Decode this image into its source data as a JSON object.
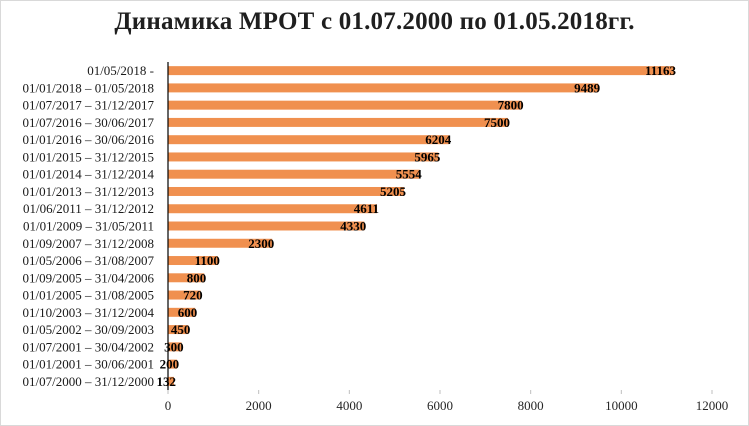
{
  "chart_data": {
    "type": "bar",
    "orientation": "horizontal",
    "title": "Динамика МРОТ с 01.07.2000 по 01.05.2018гг.",
    "categories": [
      "01/07/2000 – 31/12/2000",
      "01/01/2001 – 30/06/2001",
      "01/07/2001 – 30/04/2002",
      "01/05/2002 – 30/09/2003",
      "01/10/2003 – 31/12/2004",
      "01/01/2005 – 31/08/2005",
      "01/09/2005 – 31/04/2006",
      "01/05/2006 – 31/08/2007",
      "01/09/2007 – 31/12/2008",
      "01/01/2009 – 31/05/2011",
      "01/06/2011 – 31/12/2012",
      "01/01/2013 – 31/12/2013",
      "01/01/2014 – 31/12/2014",
      "01/01/2015 – 31/12/2015",
      "01/01/2016 – 30/06/2016",
      "01/07/2016 – 30/06/2017",
      "01/07/2017 – 31/12/2017",
      "01/01/2018 – 01/05/2018",
      "01/05/2018 -"
    ],
    "values": [
      132,
      200,
      300,
      450,
      600,
      720,
      800,
      1100,
      2300,
      4330,
      4611,
      5205,
      5554,
      5965,
      6204,
      7500,
      7800,
      9489,
      11163
    ],
    "xlim": [
      0,
      12000
    ],
    "xticks": [
      0,
      2000,
      4000,
      6000,
      8000,
      10000,
      12000
    ],
    "xlabel": "",
    "ylabel": "",
    "bar_color": "#f0904f",
    "data_labels": true,
    "gridlines": false,
    "legend": "none"
  }
}
